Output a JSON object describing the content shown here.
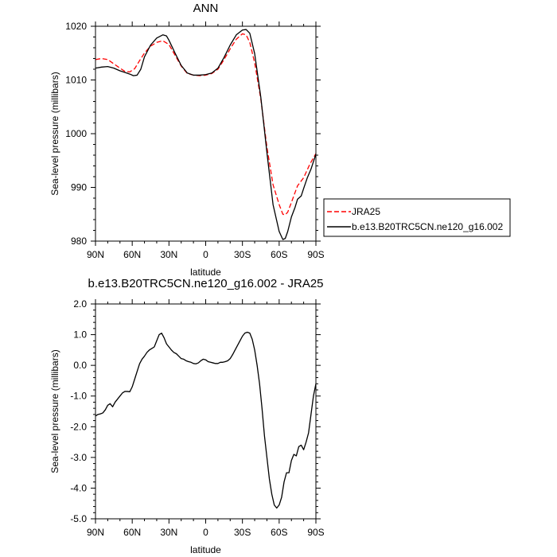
{
  "chart_data": [
    {
      "type": "line",
      "title": "ANN",
      "xlabel": "latitude",
      "ylabel": "Sea-level pressure (millibars)",
      "x_ticks": [
        "90N",
        "60N",
        "30N",
        "0",
        "30S",
        "60S",
        "90S"
      ],
      "x_tick_values": [
        90,
        60,
        30,
        0,
        -30,
        -60,
        -90
      ],
      "xlim": [
        90,
        -90
      ],
      "y_ticks": [
        "980",
        "990",
        "1000",
        "1010",
        "1020"
      ],
      "y_tick_values": [
        980,
        990,
        1000,
        1010,
        1020
      ],
      "ylim": [
        980,
        1020
      ],
      "grid": false,
      "legend_position": "right",
      "series": [
        {
          "name": "JRA25",
          "color": "#ff0000",
          "dash": "dashed",
          "x": [
            90,
            85,
            80,
            75,
            70,
            66,
            62,
            58,
            54,
            50,
            45,
            40,
            35,
            30,
            25,
            20,
            15,
            10,
            5,
            0,
            -5,
            -10,
            -15,
            -20,
            -25,
            -30,
            -33,
            -36,
            -40,
            -45,
            -50,
            -55,
            -60,
            -63,
            -65,
            -67,
            -70,
            -75,
            -80,
            -85,
            -90
          ],
          "values": [
            1013.8,
            1014.0,
            1013.8,
            1013.0,
            1012.2,
            1011.6,
            1011.5,
            1012.1,
            1013.6,
            1015.0,
            1016.3,
            1017.0,
            1017.3,
            1016.6,
            1014.6,
            1012.6,
            1011.2,
            1010.9,
            1010.8,
            1010.9,
            1011.2,
            1012.0,
            1013.8,
            1015.8,
            1017.6,
            1018.6,
            1018.4,
            1017.0,
            1013.2,
            1006.5,
            997.5,
            990.5,
            986.8,
            985.0,
            984.9,
            985.4,
            987.2,
            990.3,
            991.8,
            994.3,
            996.3
          ]
        },
        {
          "name": "b.e13.B20TRC5CN.ne120_g16.002",
          "color": "#000000",
          "dash": "solid",
          "x": [
            90,
            85,
            80,
            75,
            70,
            66,
            62,
            59,
            56,
            53,
            50,
            45,
            40,
            35,
            32,
            30,
            25,
            20,
            15,
            10,
            5,
            0,
            -5,
            -10,
            -15,
            -20,
            -25,
            -30,
            -33,
            -36,
            -40,
            -45,
            -50,
            -55,
            -60,
            -63,
            -65,
            -67,
            -70,
            -73,
            -75,
            -78,
            -80,
            -83,
            -86,
            -90
          ],
          "values": [
            1012.2,
            1012.4,
            1012.5,
            1012.2,
            1011.7,
            1011.4,
            1011.1,
            1010.8,
            1010.9,
            1012.0,
            1014.3,
            1016.5,
            1017.8,
            1018.4,
            1018.2,
            1017.4,
            1015.0,
            1012.7,
            1011.3,
            1010.9,
            1010.9,
            1011.0,
            1011.3,
            1012.2,
            1014.2,
            1016.5,
            1018.4,
            1019.3,
            1019.4,
            1018.7,
            1014.9,
            1006.8,
            996.5,
            986.8,
            981.8,
            980.3,
            980.5,
            981.8,
            984.5,
            986.3,
            987.8,
            988.4,
            989.8,
            991.8,
            993.4,
            996.2
          ]
        }
      ]
    },
    {
      "type": "line",
      "title": "b.e13.B20TRC5CN.ne120_g16.002 - JRA25",
      "xlabel": "latitude",
      "ylabel": "Sea-level pressure (millibars)",
      "x_ticks": [
        "90N",
        "60N",
        "30N",
        "0",
        "30S",
        "60S",
        "90S"
      ],
      "x_tick_values": [
        90,
        60,
        30,
        0,
        -30,
        -60,
        -90
      ],
      "xlim": [
        90,
        -90
      ],
      "y_ticks": [
        "2.0",
        "1.0",
        "0.0",
        "-1.0",
        "-2.0",
        "-3.0",
        "-4.0",
        "-5.0"
      ],
      "y_tick_values": [
        2,
        1,
        0,
        -1,
        -2,
        -3,
        -4,
        -5
      ],
      "ylim": [
        -5,
        2
      ],
      "grid": false,
      "series": [
        {
          "color": "#000000",
          "dash": "solid",
          "x": [
            90,
            88,
            86,
            84,
            82,
            80,
            78,
            76,
            74,
            72,
            70,
            68,
            66,
            64,
            62,
            60,
            58,
            56,
            54,
            52,
            50,
            48,
            46,
            44,
            42,
            40,
            38,
            36,
            34,
            32,
            30,
            28,
            26,
            24,
            22,
            20,
            18,
            16,
            14,
            12,
            10,
            8,
            6,
            4,
            2,
            0,
            -2,
            -4,
            -6,
            -8,
            -10,
            -12,
            -14,
            -16,
            -18,
            -20,
            -22,
            -24,
            -26,
            -28,
            -30,
            -32,
            -34,
            -36,
            -38,
            -40,
            -42,
            -44,
            -46,
            -48,
            -50,
            -52,
            -54,
            -56,
            -58,
            -60,
            -62,
            -64,
            -66,
            -68,
            -70,
            -72,
            -74,
            -76,
            -78,
            -80,
            -82,
            -84,
            -86,
            -88,
            -90
          ],
          "values": [
            -1.65,
            -1.6,
            -1.58,
            -1.55,
            -1.45,
            -1.3,
            -1.25,
            -1.35,
            -1.2,
            -1.1,
            -1.0,
            -0.9,
            -0.85,
            -0.85,
            -0.86,
            -0.7,
            -0.45,
            -0.2,
            0.05,
            0.2,
            0.3,
            0.42,
            0.5,
            0.55,
            0.6,
            0.8,
            1.0,
            1.05,
            0.9,
            0.7,
            0.6,
            0.5,
            0.42,
            0.38,
            0.3,
            0.22,
            0.2,
            0.15,
            0.12,
            0.1,
            0.06,
            0.05,
            0.08,
            0.15,
            0.2,
            0.18,
            0.12,
            0.1,
            0.08,
            0.06,
            0.06,
            0.1,
            0.1,
            0.12,
            0.15,
            0.22,
            0.35,
            0.5,
            0.65,
            0.8,
            0.95,
            1.05,
            1.08,
            1.05,
            0.85,
            0.5,
            0.0,
            -0.6,
            -1.4,
            -2.3,
            -3.0,
            -3.7,
            -4.2,
            -4.55,
            -4.65,
            -4.55,
            -4.3,
            -3.8,
            -3.5,
            -3.5,
            -3.1,
            -2.9,
            -2.95,
            -2.65,
            -2.6,
            -2.75,
            -2.5,
            -2.2,
            -1.6,
            -1.0,
            -0.6
          ]
        }
      ]
    }
  ]
}
